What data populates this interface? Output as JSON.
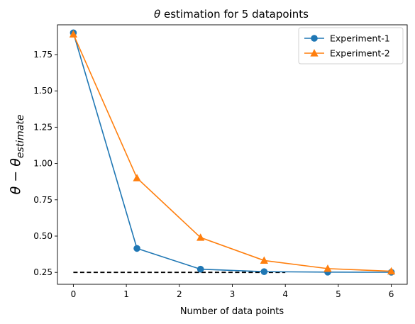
{
  "chart_data": {
    "type": "line",
    "title_prefix": "θ",
    "title_rest": " estimation for 5 datapoints",
    "xlabel": "Number of data points",
    "ylabel_main": "θ − θ",
    "ylabel_sub": "estimate",
    "xlim": [
      -0.3,
      6.3
    ],
    "ylim": [
      0.168,
      1.955
    ],
    "xticks": [
      0,
      1,
      2,
      3,
      4,
      5,
      6
    ],
    "xtick_labels": [
      "0",
      "1",
      "2",
      "3",
      "4",
      "5",
      "6"
    ],
    "yticks": [
      0.25,
      0.5,
      0.75,
      1.0,
      1.25,
      1.5,
      1.75
    ],
    "ytick_labels": [
      "0.25",
      "0.50",
      "0.75",
      "1.00",
      "1.25",
      "1.50",
      "1.75"
    ],
    "legend_position": "upper right",
    "series": [
      {
        "name": "Experiment-1",
        "color": "#1f77b4",
        "marker": "circle",
        "x": [
          0,
          1.2,
          2.4,
          3.6,
          4.8,
          6.0
        ],
        "values": [
          1.9,
          0.415,
          0.272,
          0.255,
          0.252,
          0.251
        ]
      },
      {
        "name": "Experiment-2",
        "color": "#ff7f0e",
        "marker": "triangle",
        "x": [
          0,
          1.2,
          2.4,
          3.6,
          4.8,
          6.0
        ],
        "values": [
          1.89,
          0.9,
          0.49,
          0.332,
          0.276,
          0.258
        ]
      }
    ],
    "reference_line": {
      "style": "dashed",
      "color": "#000000",
      "x": [
        0,
        4
      ],
      "y": 0.25
    }
  }
}
